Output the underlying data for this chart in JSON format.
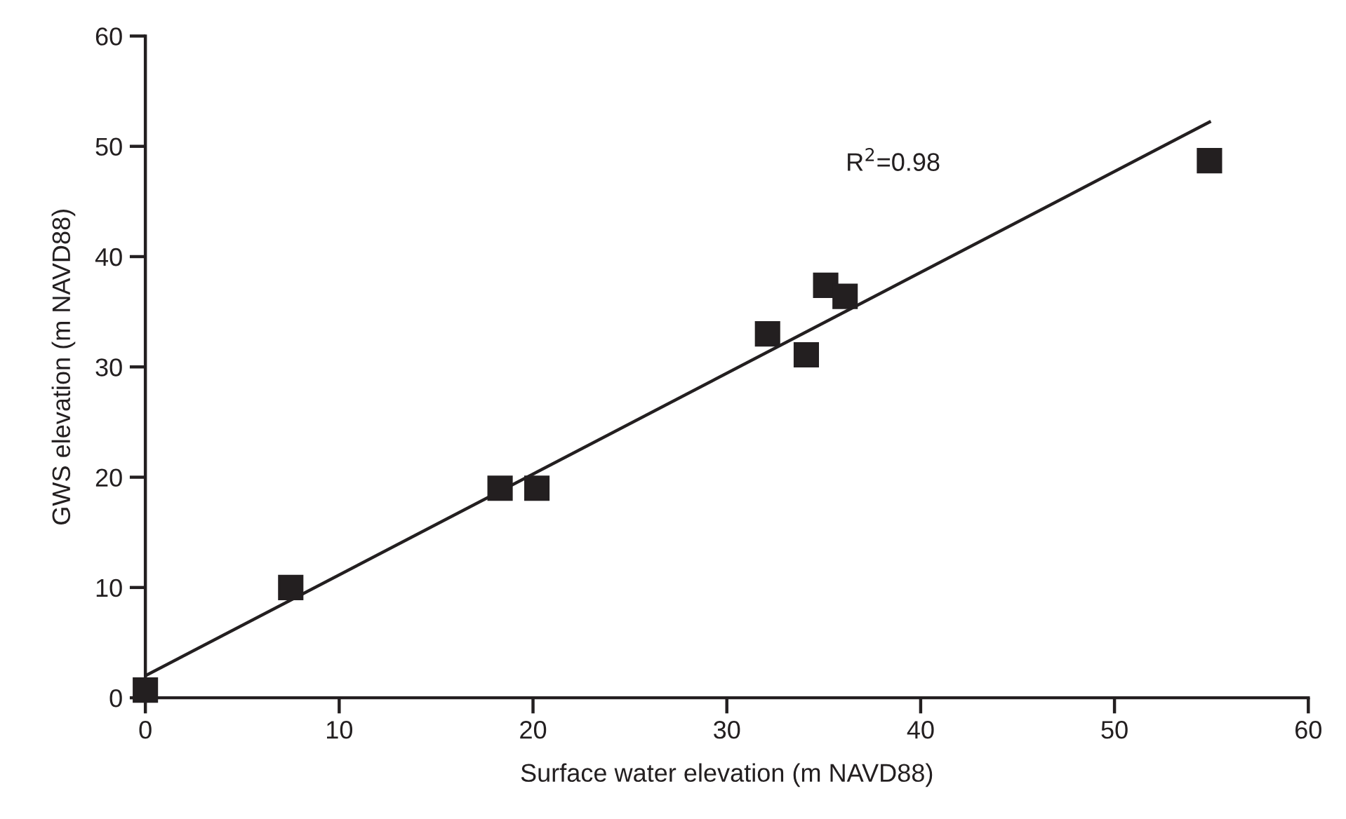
{
  "chart_data": {
    "type": "scatter",
    "xlabel": "Surface water elevation (m NAVD88)",
    "ylabel": "GWS elevation (m NAVD88)",
    "xlim": [
      0,
      60
    ],
    "ylim": [
      0,
      60
    ],
    "xticks": [
      0,
      10,
      20,
      30,
      40,
      50,
      60
    ],
    "yticks": [
      0,
      10,
      20,
      30,
      40,
      50,
      60
    ],
    "grid": false,
    "marker": "square",
    "series": [
      {
        "color": "#231f20",
        "x": [
          0,
          7.5,
          18.3,
          20.2,
          32.1,
          34.1,
          35.1,
          36.1,
          54.9
        ],
        "values": [
          0.7,
          10.0,
          19.0,
          19.0,
          33.0,
          31.1,
          37.4,
          36.4,
          48.7
        ]
      },
      {
        "type": "line",
        "color": "#231f20",
        "line_style": "solid",
        "marker": "none",
        "x": [
          0,
          54.9
        ],
        "values": [
          2.0,
          52.2
        ]
      }
    ],
    "annotations": [
      "R$^{2}$=0.98"
    ]
  }
}
